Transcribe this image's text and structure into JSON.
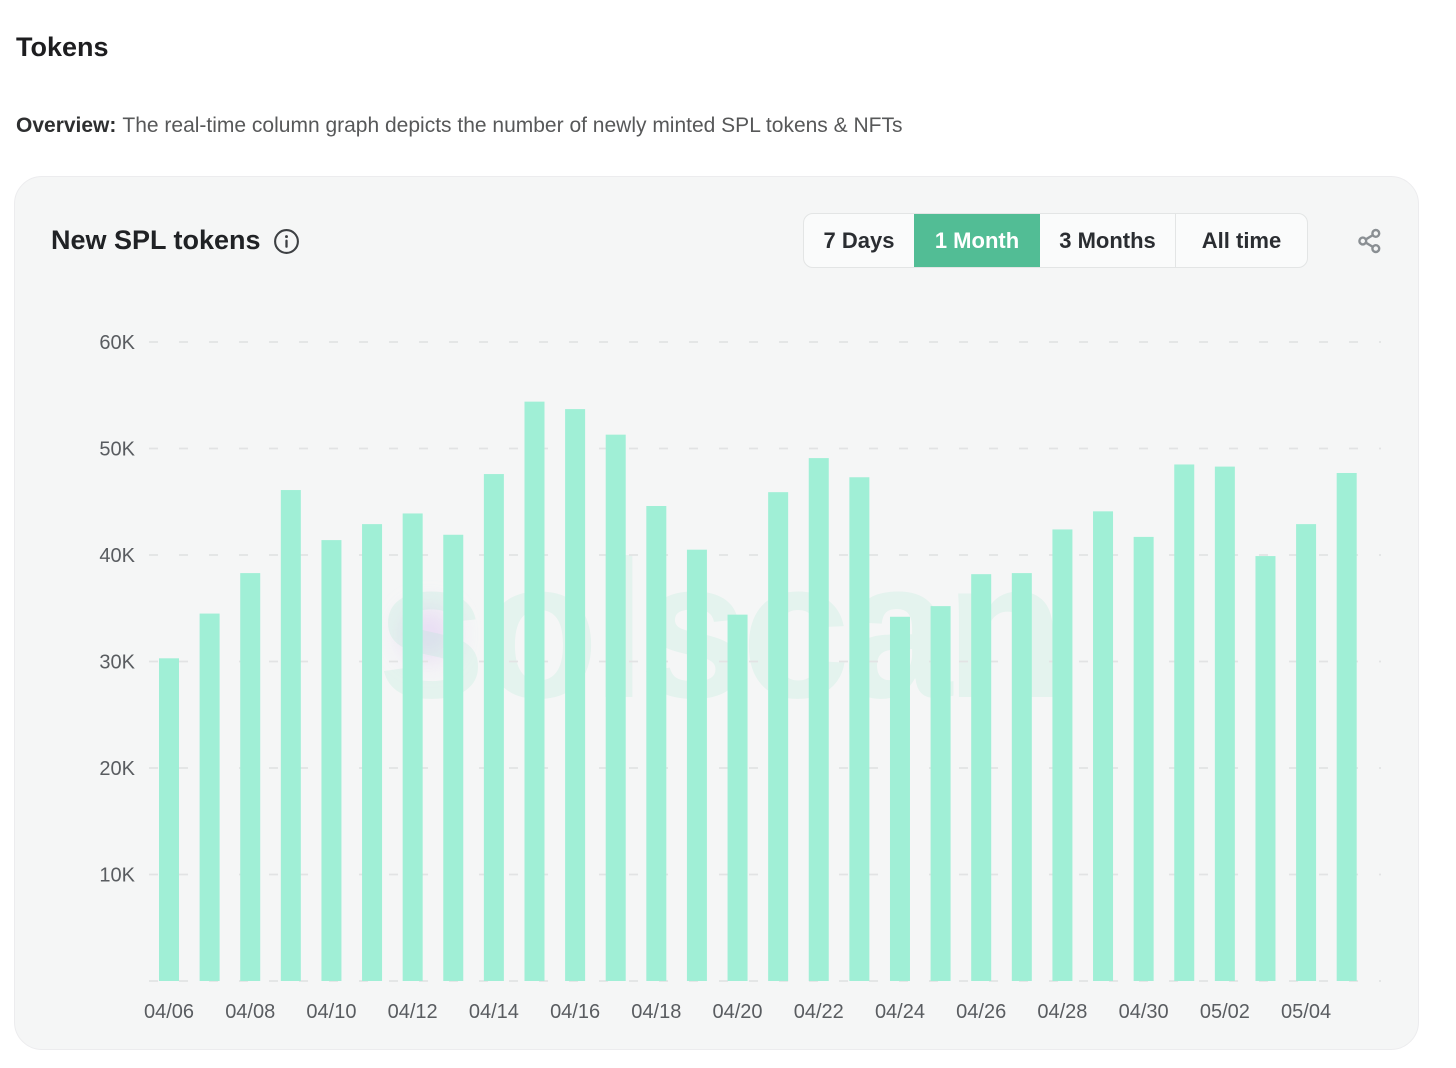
{
  "page": {
    "title": "Tokens",
    "overview_label": "Overview:",
    "overview_text": "The real-time column graph depicts the number of newly minted SPL tokens & NFTs"
  },
  "card": {
    "title": "New SPL tokens",
    "info_icon": "info-circle-icon",
    "share_icon": "share-nodes-icon",
    "time_ranges": [
      {
        "label": "7 Days",
        "selected": false
      },
      {
        "label": "1 Month",
        "selected": true
      },
      {
        "label": "3 Months",
        "selected": false
      },
      {
        "label": "All time",
        "selected": false
      }
    ],
    "watermark_text": "solscan"
  },
  "colors": {
    "bar": "#A0EFD6",
    "accent_selected": "#52BD95",
    "gridline": "#e2e3e4",
    "axis_text": "#595c60",
    "card_bg": "#f5f6f6"
  },
  "chart_data": {
    "type": "bar",
    "title": "New SPL tokens",
    "xlabel": "",
    "ylabel": "",
    "unit": "tokens",
    "ylim": [
      0,
      60000
    ],
    "y_ticks": [
      {
        "value": 10000,
        "label": "10K"
      },
      {
        "value": 20000,
        "label": "20K"
      },
      {
        "value": 30000,
        "label": "30K"
      },
      {
        "value": 40000,
        "label": "40K"
      },
      {
        "value": 50000,
        "label": "50K"
      },
      {
        "value": 60000,
        "label": "60K"
      }
    ],
    "grid": "dashed-horizontal",
    "legend": "none",
    "x_label_every": 2,
    "categories": [
      "04/06",
      "04/07",
      "04/08",
      "04/09",
      "04/10",
      "04/11",
      "04/12",
      "04/13",
      "04/14",
      "04/15",
      "04/16",
      "04/17",
      "04/18",
      "04/19",
      "04/20",
      "04/21",
      "04/22",
      "04/23",
      "04/24",
      "04/25",
      "04/26",
      "04/27",
      "04/28",
      "04/29",
      "04/30",
      "05/01",
      "05/02",
      "05/03",
      "05/04",
      "05/05"
    ],
    "values": [
      30300,
      34500,
      38300,
      46100,
      41400,
      42900,
      43900,
      41900,
      47600,
      54400,
      53700,
      51300,
      44600,
      40500,
      34400,
      45900,
      49100,
      47300,
      34200,
      35200,
      38200,
      38300,
      42400,
      44100,
      41700,
      48500,
      48300,
      39900,
      42900,
      47700
    ]
  }
}
